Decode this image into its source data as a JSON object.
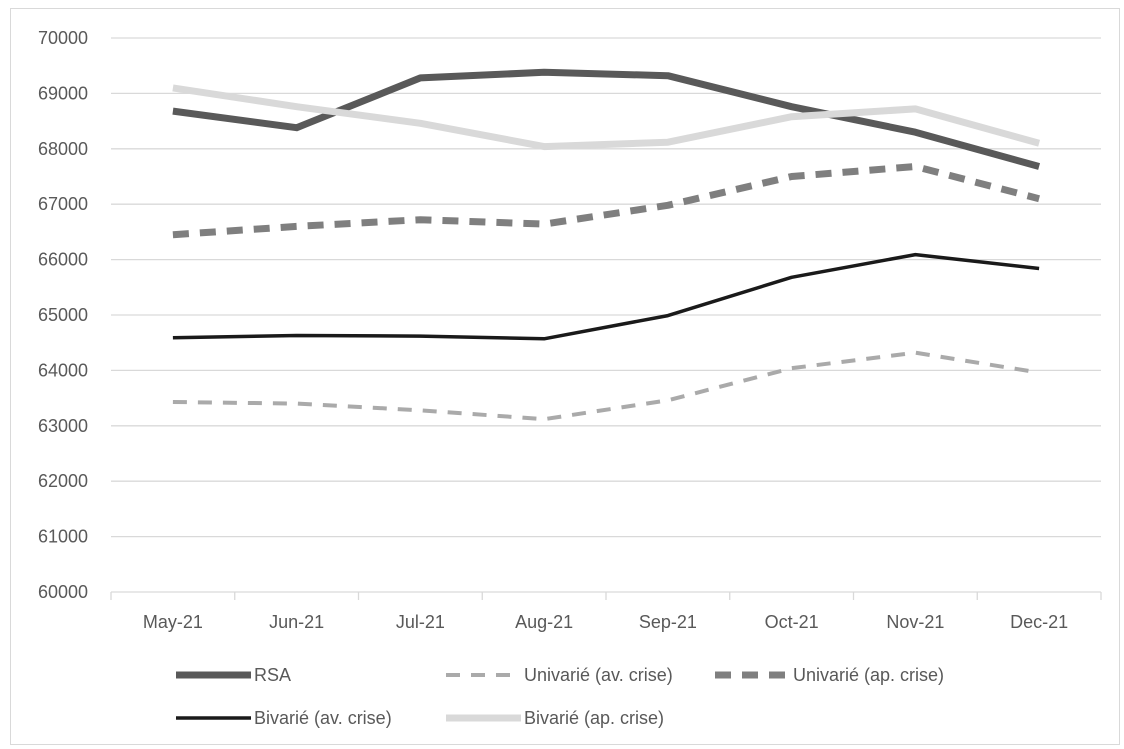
{
  "chart_data": {
    "type": "line",
    "title": "",
    "xlabel": "",
    "ylabel": "",
    "categories": [
      "May-21",
      "Jun-21",
      "Jul-21",
      "Aug-21",
      "Sep-21",
      "Oct-21",
      "Nov-21",
      "Dec-21"
    ],
    "ylim": [
      60000,
      70000
    ],
    "yticks": [
      "60000",
      "61000",
      "62000",
      "63000",
      "64000",
      "65000",
      "66000",
      "67000",
      "68000",
      "69000",
      "70000"
    ],
    "grid": "horizontal",
    "legend_position": "bottom",
    "series": [
      {
        "name": "RSA",
        "color": "#595959",
        "style": "solid-thick",
        "values": [
          68680,
          68380,
          69280,
          69380,
          69320,
          68760,
          68300,
          67680
        ]
      },
      {
        "name": "Univarié (av. crise)",
        "color": "#aaaaaa",
        "style": "dashed",
        "values": [
          63430,
          63400,
          63280,
          63120,
          63460,
          64040,
          64320,
          63960
        ]
      },
      {
        "name": "Univarié (ap. crise)",
        "color": "#7f7f7f",
        "style": "dashed-thick",
        "values": [
          66450,
          66600,
          66720,
          66640,
          66980,
          67500,
          67680,
          67100
        ]
      },
      {
        "name": "Bivarié (av. crise)",
        "color": "#1a1a1a",
        "style": "solid",
        "values": [
          64590,
          64630,
          64620,
          64570,
          64990,
          65680,
          66090,
          65840
        ]
      },
      {
        "name": "Bivarié (ap. crise)",
        "color": "#d9d9d9",
        "style": "solid-thick",
        "values": [
          69100,
          68760,
          68460,
          68040,
          68120,
          68580,
          68720,
          68100
        ]
      }
    ]
  }
}
